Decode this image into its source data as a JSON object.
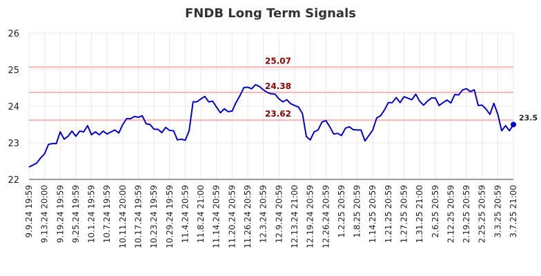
{
  "chart_data": {
    "type": "line",
    "title": "FNDB Long Term Signals",
    "xlabel": "",
    "ylabel": "",
    "ylim": [
      22,
      26
    ],
    "yticks": [
      "22",
      "23",
      "24",
      "25",
      "26"
    ],
    "grid": true,
    "colors": {
      "line": "#0000cc",
      "level_line": "#ffb3b3",
      "level_text": "#8b0000",
      "grid": "#e8e8e8",
      "last_point": "#0000cc"
    },
    "x_tick_labels": [
      "9.9.24 19:59",
      "9.13.24 20:00",
      "9.19.24 19:59",
      "9.25.24 19:59",
      "10.1.24 19:59",
      "10.7.24 19:59",
      "10.11.24 20:00",
      "10.17.24 19:59",
      "10.23.24 19:59",
      "10.29.24 19:59",
      "11.4.24 20:59",
      "11.8.24 21:00",
      "11.14.24 20:59",
      "11.20.24 20:59",
      "11.26.24 20:59",
      "12.3.24 20:59",
      "12.9.24 20:59",
      "12.13.24 21:00",
      "12.19.24 20:59",
      "12.26.24 20:59",
      "1.2.25 20:59",
      "1.8.25 20:59",
      "1.14.25 20:59",
      "1.21.25 20:59",
      "1.27.25 20:59",
      "1.31.25 21:00",
      "2.6.25 20:59",
      "2.12.25 20:59",
      "2.19.25 20:59",
      "2.25.25 20:59",
      "3.3.25 20:59",
      "3.7.25 21:00"
    ],
    "levels": [
      {
        "value": 25.07,
        "label": "25.07"
      },
      {
        "value": 24.38,
        "label": "24.38"
      },
      {
        "value": 23.62,
        "label": "23.62"
      }
    ],
    "last_value_label": "23.5",
    "series": [
      {
        "values": [
          22.34,
          22.39,
          22.45,
          22.59,
          22.7,
          22.96,
          22.98,
          22.98,
          23.3,
          23.1,
          23.18,
          23.32,
          23.18,
          23.32,
          23.3,
          23.47,
          23.22,
          23.3,
          23.22,
          23.32,
          23.24,
          23.3,
          23.35,
          23.27,
          23.5,
          23.66,
          23.66,
          23.72,
          23.7,
          23.74,
          23.52,
          23.5,
          23.37,
          23.37,
          23.28,
          23.42,
          23.34,
          23.33,
          23.08,
          23.1,
          23.07,
          23.33,
          24.12,
          24.12,
          24.2,
          24.27,
          24.12,
          24.14,
          23.98,
          23.82,
          23.93,
          23.85,
          23.87,
          24.1,
          24.29,
          24.51,
          24.52,
          24.48,
          24.59,
          24.54,
          24.45,
          24.38,
          24.34,
          24.33,
          24.2,
          24.12,
          24.18,
          24.07,
          24.02,
          23.98,
          23.8,
          23.17,
          23.08,
          23.3,
          23.35,
          23.57,
          23.61,
          23.44,
          23.24,
          23.26,
          23.2,
          23.4,
          23.44,
          23.36,
          23.35,
          23.35,
          23.05,
          23.2,
          23.35,
          23.68,
          23.74,
          23.9,
          24.1,
          24.1,
          24.24,
          24.1,
          24.26,
          24.22,
          24.18,
          24.33,
          24.14,
          24.03,
          24.14,
          24.22,
          24.23,
          24.02,
          24.1,
          24.17,
          24.09,
          24.32,
          24.31,
          24.45,
          24.48,
          24.4,
          24.45,
          24.02,
          24.03,
          23.92,
          23.78,
          24.08,
          23.78,
          23.33,
          23.47,
          23.33,
          23.5
        ]
      }
    ]
  }
}
